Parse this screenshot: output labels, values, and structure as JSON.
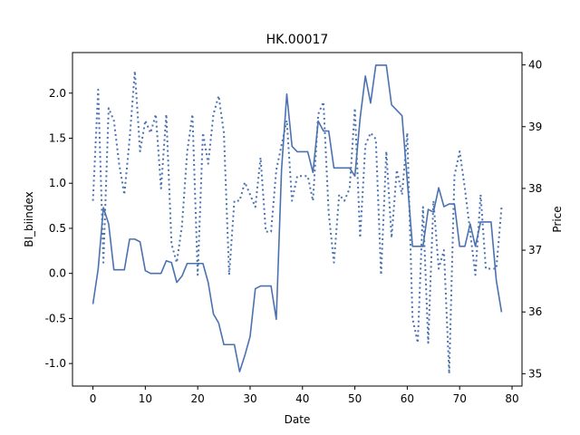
{
  "chart_data": {
    "type": "line",
    "title": "HK.00017",
    "xlabel": "Date",
    "ylabel": "BI_biindex",
    "y2label": "Price",
    "xlim": [
      -3.9,
      81.9
    ],
    "ylim": [
      -1.25,
      2.45
    ],
    "y2lim": [
      34.8,
      40.2
    ],
    "xticks": [
      0,
      10,
      20,
      30,
      40,
      50,
      60,
      70,
      80
    ],
    "yticks": [
      -1.0,
      -0.5,
      0.0,
      0.5,
      1.0,
      1.5,
      2.0
    ],
    "ytick_labels": [
      "-1.0",
      "-0.5",
      "0.0",
      "0.5",
      "1.0",
      "1.5",
      "2.0"
    ],
    "y2ticks": [
      35,
      36,
      37,
      38,
      39,
      40
    ],
    "grid": false,
    "color": "#4a72b0",
    "series": [
      {
        "axis": "left",
        "style": "solid",
        "values": [
          -0.34,
          0.05,
          0.73,
          0.55,
          0.04,
          0.04,
          0.04,
          0.38,
          0.38,
          0.35,
          0.03,
          0.0,
          0.0,
          0.0,
          0.14,
          0.12,
          -0.1,
          -0.03,
          0.11,
          0.11,
          0.11,
          0.11,
          -0.1,
          -0.45,
          -0.55,
          -0.79,
          -0.79,
          -0.79,
          -1.09,
          -0.91,
          -0.7,
          -0.17,
          -0.14,
          -0.14,
          -0.14,
          -0.51,
          1.15,
          1.99,
          1.41,
          1.35,
          1.35,
          1.35,
          1.12,
          1.69,
          1.58,
          1.58,
          1.17,
          1.17,
          1.17,
          1.17,
          1.08,
          1.72,
          2.19,
          1.89,
          2.31,
          2.31,
          2.31,
          1.87,
          1.81,
          1.75,
          1.03,
          0.3,
          0.3,
          0.3,
          0.71,
          0.68,
          0.95,
          0.74,
          0.77,
          0.77,
          0.3,
          0.3,
          0.55,
          0.3,
          0.57,
          0.57,
          0.57,
          -0.08,
          -0.43
        ]
      },
      {
        "axis": "right",
        "style": "dotted",
        "values": [
          37.8,
          39.6,
          36.8,
          39.3,
          39.1,
          38.4,
          37.9,
          38.8,
          39.9,
          38.6,
          39.1,
          38.9,
          39.2,
          38.0,
          39.2,
          37.1,
          36.8,
          37.4,
          38.6,
          39.2,
          36.6,
          38.9,
          38.4,
          39.2,
          39.5,
          38.9,
          36.6,
          37.8,
          37.8,
          38.1,
          37.9,
          37.7,
          38.5,
          37.3,
          37.3,
          38.3,
          38.7,
          39.1,
          37.8,
          38.2,
          38.2,
          38.2,
          37.8,
          39.2,
          39.4,
          37.6,
          36.8,
          37.9,
          37.8,
          38.0,
          39.3,
          37.2,
          38.7,
          38.9,
          38.8,
          36.6,
          38.6,
          37.2,
          38.3,
          37.9,
          38.9,
          35.9,
          35.5,
          37.7,
          35.5,
          37.8,
          36.7,
          37.0,
          35.0,
          38.2,
          38.6,
          38.0,
          37.3,
          36.6,
          37.9,
          36.7,
          36.7,
          36.7,
          37.7
        ]
      }
    ]
  }
}
